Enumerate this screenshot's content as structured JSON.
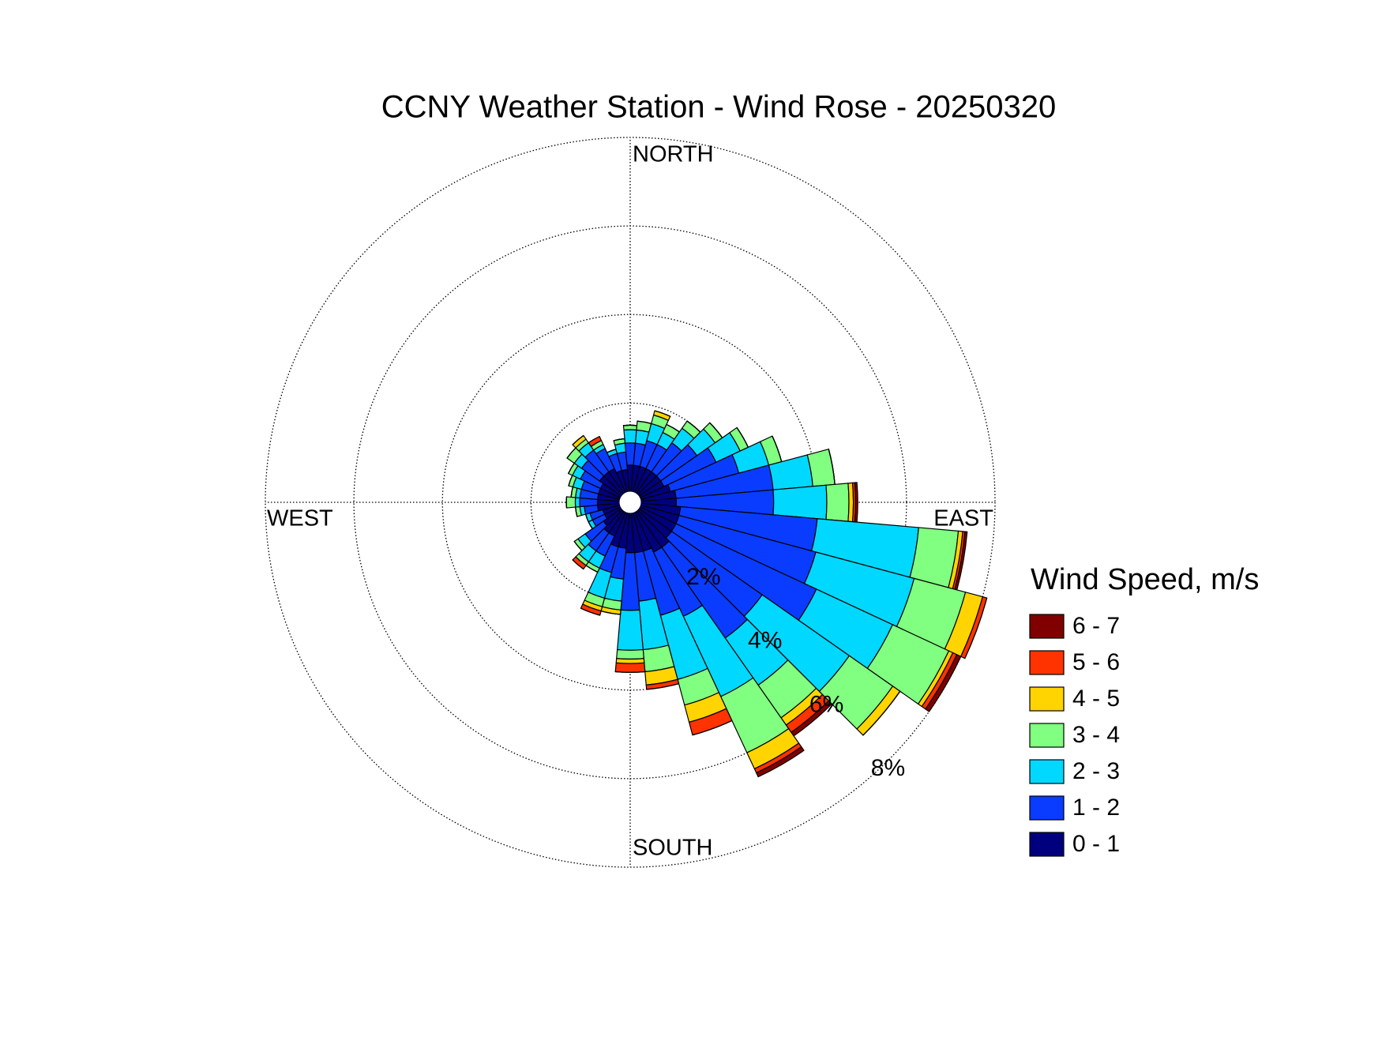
{
  "chart_data": {
    "type": "windrose",
    "title": "CCNY Weather Station - Wind Rose - 20250320",
    "legend_title": "Wind Speed, m/s",
    "x": [
      0,
      10,
      20,
      30,
      40,
      50,
      60,
      70,
      80,
      90,
      100,
      110,
      120,
      130,
      140,
      150,
      160,
      170,
      180,
      190,
      200,
      210,
      220,
      230,
      240,
      250,
      260,
      270,
      280,
      290,
      300,
      310,
      320,
      330,
      340,
      350
    ],
    "xticks": [
      {
        "value": 0,
        "label": "NORTH"
      },
      {
        "value": 90,
        "label": "EAST"
      },
      {
        "value": 180,
        "label": "SOUTH"
      },
      {
        "value": 270,
        "label": "WEST"
      }
    ],
    "ylim": [
      0,
      8
    ],
    "yticks": [
      {
        "value": 2,
        "label": "2%"
      },
      {
        "value": 4,
        "label": "4%"
      },
      {
        "value": 6,
        "label": "6%"
      },
      {
        "value": 8,
        "label": "8%"
      }
    ],
    "grid": true,
    "series": [
      {
        "name": "0 - 1",
        "color": "#00007f",
        "values": [
          0.6,
          0.6,
          0.6,
          0.6,
          0.6,
          0.6,
          0.6,
          0.7,
          0.8,
          0.8,
          0.9,
          0.9,
          0.9,
          0.9,
          1.0,
          1.0,
          0.9,
          0.9,
          0.9,
          0.8,
          0.8,
          0.6,
          0.6,
          0.5,
          0.4,
          0.4,
          0.5,
          0.5,
          0.5,
          0.5,
          0.5,
          0.6,
          0.6,
          0.6,
          0.5,
          0.5
        ]
      },
      {
        "name": "1 - 2",
        "color": "#0a3cff",
        "values": [
          0.5,
          0.5,
          0.6,
          0.6,
          0.8,
          1.0,
          1.3,
          1.6,
          2.2,
          2.2,
          3.1,
          3.2,
          3.5,
          2.5,
          2.5,
          1.6,
          1.5,
          1.1,
          1.3,
          0.7,
          0.6,
          0.5,
          0.5,
          0.5,
          0.3,
          0.3,
          0.3,
          0.4,
          0.4,
          0.4,
          0.5,
          0.5,
          0.6,
          0.5,
          0.4,
          0.4
        ]
      },
      {
        "name": "2 - 3",
        "color": "#00d8ff",
        "values": [
          0.3,
          0.3,
          0.4,
          0.3,
          0.4,
          0.5,
          0.6,
          0.7,
          0.9,
          1.2,
          2.3,
          2.3,
          1.9,
          2.4,
          1.3,
          2.0,
          1.5,
          1.1,
          0.9,
          0.5,
          0.6,
          0.3,
          0.3,
          0.2,
          0.1,
          0.1,
          0.1,
          0.1,
          0.1,
          0.2,
          0.2,
          0.2,
          0.2,
          0.1,
          0.1,
          0.2
        ]
      },
      {
        "name": "3 - 4",
        "color": "#80ff80",
        "values": [
          0.1,
          0.2,
          0.2,
          0.2,
          0.2,
          0.2,
          0.2,
          0.3,
          0.5,
          0.5,
          0.9,
          1.2,
          1.4,
          1.2,
          0.9,
          1.4,
          0.6,
          0.5,
          0.2,
          0.2,
          0.2,
          0.1,
          0.1,
          0.1,
          0,
          0,
          0.1,
          0.2,
          0.1,
          0.1,
          0.1,
          0.2,
          0.1,
          0.1,
          0,
          0.1
        ]
      },
      {
        "name": "4 - 5",
        "color": "#ffd400",
        "values": [
          0,
          0,
          0.1,
          0,
          0,
          0,
          0,
          0,
          0,
          0.1,
          0.1,
          0.4,
          0.1,
          0.2,
          0.2,
          0.4,
          0.4,
          0.3,
          0.1,
          0.1,
          0.1,
          0,
          0,
          0,
          0,
          0,
          0,
          0,
          0,
          0,
          0,
          0,
          0.1,
          0,
          0,
          0
        ]
      },
      {
        "name": "5 - 6",
        "color": "#ff3300",
        "values": [
          0,
          0,
          0,
          0,
          0,
          0,
          0,
          0,
          0,
          0.05,
          0.05,
          0.1,
          0.1,
          0,
          0.2,
          0.1,
          0.3,
          0.1,
          0.2,
          0,
          0.1,
          0,
          0.1,
          0,
          0,
          0,
          0,
          0,
          0,
          0,
          0,
          0,
          0,
          0.1,
          0,
          0
        ]
      },
      {
        "name": "6 - 7",
        "color": "#800000",
        "values": [
          0,
          0,
          0,
          0,
          0,
          0,
          0,
          0,
          0,
          0.05,
          0.05,
          0,
          0.1,
          0,
          0.1,
          0.1,
          0,
          0,
          0,
          0,
          0,
          0,
          0,
          0,
          0,
          0,
          0,
          0,
          0,
          0,
          0,
          0,
          0,
          0,
          0,
          0
        ]
      }
    ]
  }
}
